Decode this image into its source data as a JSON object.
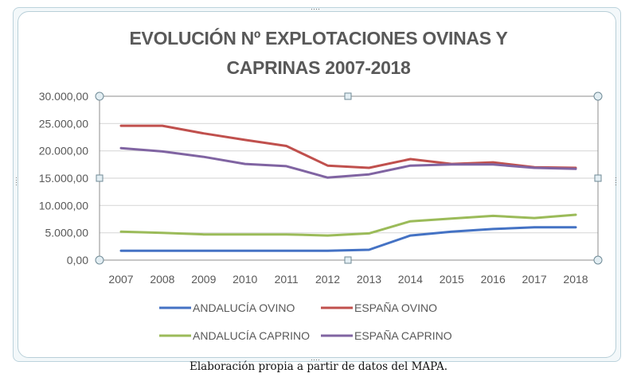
{
  "chart_data": {
    "type": "line",
    "title_lines": [
      "EVOLUCIÓN Nº EXPLOTACIONES OVINAS Y",
      "CAPRINAS 2007-2018"
    ],
    "xlabel": "",
    "ylabel": "",
    "x": [
      "2007",
      "2008",
      "2009",
      "2010",
      "2011",
      "2012",
      "2013",
      "2014",
      "2015",
      "2016",
      "2017",
      "2018"
    ],
    "ylim": [
      0,
      30000
    ],
    "yticks": [
      0,
      5000,
      10000,
      15000,
      20000,
      25000,
      30000
    ],
    "ytick_labels": [
      "0,00",
      "5.000,00",
      "10.000,00",
      "15.000,00",
      "20.000,00",
      "25.000,00",
      "30.000,00"
    ],
    "grid": true,
    "legend_position": "bottom",
    "series": [
      {
        "name": "ANDALUCÍA OVINO",
        "color": "#4472c4",
        "values": [
          1700,
          1700,
          1700,
          1700,
          1700,
          1700,
          1900,
          4500,
          5200,
          5700,
          6000,
          6000
        ]
      },
      {
        "name": "ESPAÑA OVINO",
        "color": "#c0504d",
        "values": [
          24600,
          24600,
          23200,
          22000,
          20900,
          17300,
          16900,
          18500,
          17600,
          17900,
          17000,
          16900
        ]
      },
      {
        "name": "ANDALUCÍA CAPRINO",
        "color": "#9bbb59",
        "values": [
          5200,
          5000,
          4700,
          4700,
          4700,
          4500,
          4900,
          7100,
          7600,
          8100,
          7700,
          8300
        ]
      },
      {
        "name": "ESPAÑA CAPRINO",
        "color": "#8064a2",
        "values": [
          20500,
          19900,
          18900,
          17600,
          17200,
          15100,
          15700,
          17300,
          17500,
          17500,
          16900,
          16700
        ]
      }
    ]
  },
  "caption": "Elaboración propia a partir de datos del MAPA.",
  "colors": {
    "grid": "#d9d9d9",
    "axis_text": "#595959",
    "handle_fill": "#e3eef3",
    "handle_stroke": "#6f8a96"
  }
}
